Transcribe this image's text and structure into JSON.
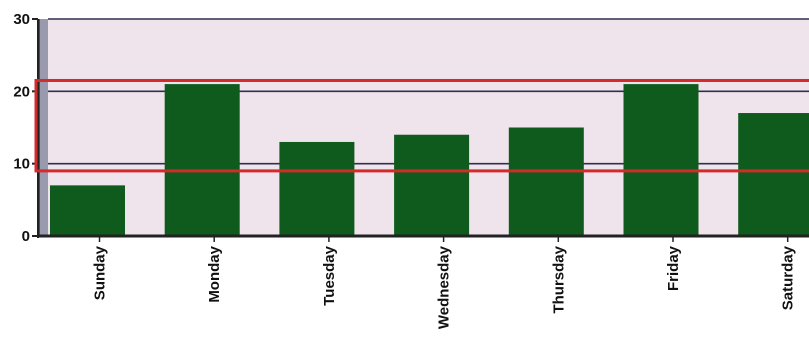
{
  "chart_data": {
    "type": "bar",
    "categories": [
      "Sunday",
      "Monday",
      "Tuesday",
      "Wednesday",
      "Thursday",
      "Friday",
      "Saturday"
    ],
    "values": [
      7,
      21,
      13,
      14,
      15,
      21,
      17
    ],
    "ylim": [
      0,
      30
    ],
    "yticks": [
      0,
      10,
      20,
      30
    ],
    "ytick_labels": [
      "0",
      "10",
      "20",
      "30"
    ],
    "grid": true,
    "colors": {
      "bar": "#0f5a1d",
      "plot_background": "#f0e4ec",
      "gridline": "#2f2f52",
      "highlight_box": "#d32a2a",
      "side_wall": "#9a9aae"
    },
    "annotation": {
      "type": "highlight-band",
      "y_range": [
        9,
        21.5
      ]
    }
  }
}
